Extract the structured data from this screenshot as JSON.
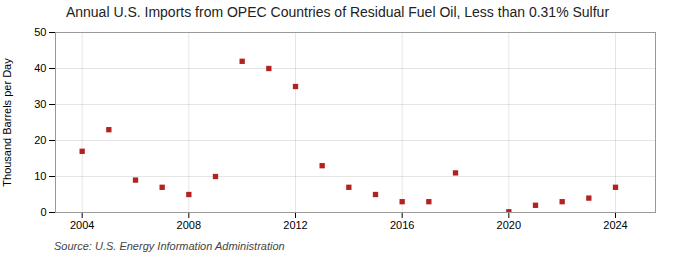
{
  "chart_data": {
    "type": "scatter",
    "title": "Annual U.S. Imports from OPEC Countries of Residual Fuel Oil, Less than 0.31% Sulfur",
    "ylabel": "Thousand Barrels per Day",
    "source": "Source: U.S. Energy Information Administration",
    "x": [
      2004,
      2005,
      2006,
      2007,
      2008,
      2009,
      2010,
      2011,
      2012,
      2013,
      2014,
      2015,
      2016,
      2017,
      2018,
      2020,
      2021,
      2022,
      2023,
      2024
    ],
    "values": [
      17,
      23,
      9,
      7,
      5,
      10,
      42,
      40,
      35,
      13,
      7,
      5,
      3,
      3,
      11,
      0.2,
      2,
      3,
      4,
      7
    ],
    "color": "#b22222",
    "marker": "square",
    "xlim": [
      2003,
      2025.5
    ],
    "ylim": [
      0,
      50
    ],
    "xticks": [
      2004,
      2008,
      2012,
      2016,
      2020,
      2024
    ],
    "yticks": [
      0,
      10,
      20,
      30,
      40,
      50
    ],
    "grid": true
  }
}
